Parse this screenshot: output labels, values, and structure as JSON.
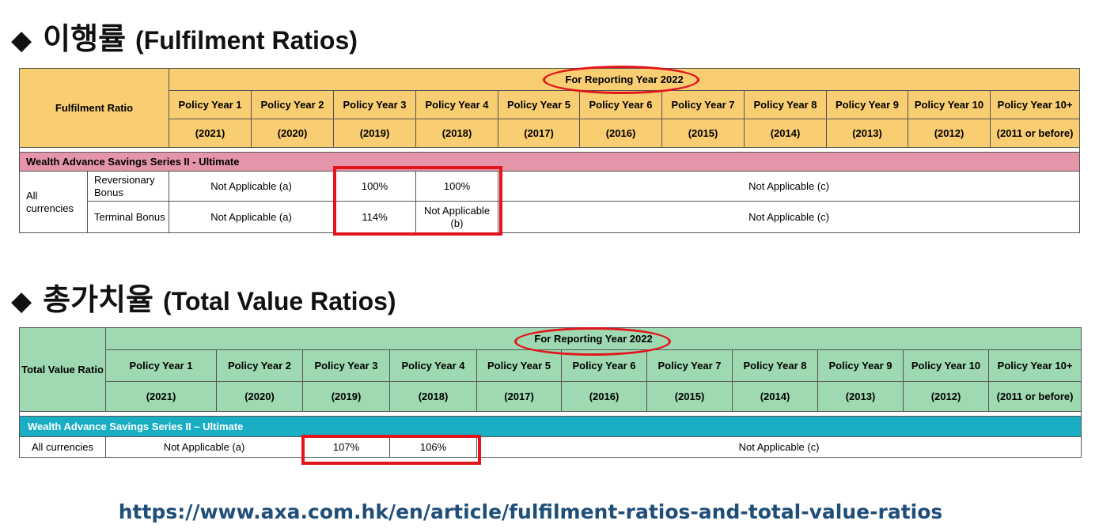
{
  "section1": {
    "diamond": "◆",
    "title_kr": "이행률",
    "title_en": "(Fulfilment Ratios)",
    "table": {
      "row_header": "Fulfilment Ratio",
      "reporting_year": "For Reporting Year 2022",
      "policy_years": [
        {
          "label": "Policy Year 1",
          "year": "(2021)"
        },
        {
          "label": "Policy Year 2",
          "year": "(2020)"
        },
        {
          "label": "Policy Year 3",
          "year": "(2019)"
        },
        {
          "label": "Policy Year 4",
          "year": "(2018)"
        },
        {
          "label": "Policy Year 5",
          "year": "(2017)"
        },
        {
          "label": "Policy Year 6",
          "year": "(2016)"
        },
        {
          "label": "Policy Year 7",
          "year": "(2015)"
        },
        {
          "label": "Policy Year 8",
          "year": "(2014)"
        },
        {
          "label": "Policy Year 9",
          "year": "(2013)"
        },
        {
          "label": "Policy Year 10",
          "year": "(2012)"
        },
        {
          "label": "Policy Year 10+",
          "year": "(2011 or before)"
        }
      ],
      "product": "Wealth Advance Savings Series II - Ultimate",
      "currency": "All currencies",
      "rows": [
        {
          "bonus": "Reversionary Bonus",
          "na_a": "Not Applicable (a)",
          "py3": "100%",
          "py4": "100%",
          "na_c": "Not Applicable (c)"
        },
        {
          "bonus": "Terminal Bonus",
          "na_a": "Not Applicable (a)",
          "py3": "114%",
          "py4": "Not Applicable (b)",
          "na_c": "Not Applicable (c)"
        }
      ]
    }
  },
  "section2": {
    "diamond": "◆",
    "title_kr": "총가치율",
    "title_en": "(Total Value Ratios)",
    "table": {
      "row_header": "Total Value Ratio",
      "reporting_year": "For Reporting Year 2022",
      "policy_years": [
        {
          "label": "Policy Year 1",
          "year": "(2021)"
        },
        {
          "label": "Policy Year 2",
          "year": "(2020)"
        },
        {
          "label": "Policy Year 3",
          "year": "(2019)"
        },
        {
          "label": "Policy Year 4",
          "year": "(2018)"
        },
        {
          "label": "Policy Year 5",
          "year": "(2017)"
        },
        {
          "label": "Policy Year 6",
          "year": "(2016)"
        },
        {
          "label": "Policy Year 7",
          "year": "(2015)"
        },
        {
          "label": "Policy Year 8",
          "year": "(2014)"
        },
        {
          "label": "Policy Year 9",
          "year": "(2013)"
        },
        {
          "label": "Policy Year 10",
          "year": "(2012)"
        },
        {
          "label": "Policy Year 10+",
          "year": "(2011 or before)"
        }
      ],
      "product": "Wealth Advance Savings Series II – Ultimate",
      "row": {
        "currency": "All currencies",
        "na_a": "Not Applicable (a)",
        "py3": "107%",
        "py4": "106%",
        "na_c": "Not Applicable (c)"
      }
    }
  },
  "source_url": "https://www.axa.com.hk/en/article/fulfilment-ratios-and-total-value-ratios",
  "colors": {
    "fulfilment_header": "#f9cd72",
    "fulfilment_section": "#e495a9",
    "tvr_header": "#9fd9b1",
    "tvr_section": "#1aaec5",
    "highlight": "#e3141b",
    "link": "#1f4e79"
  }
}
